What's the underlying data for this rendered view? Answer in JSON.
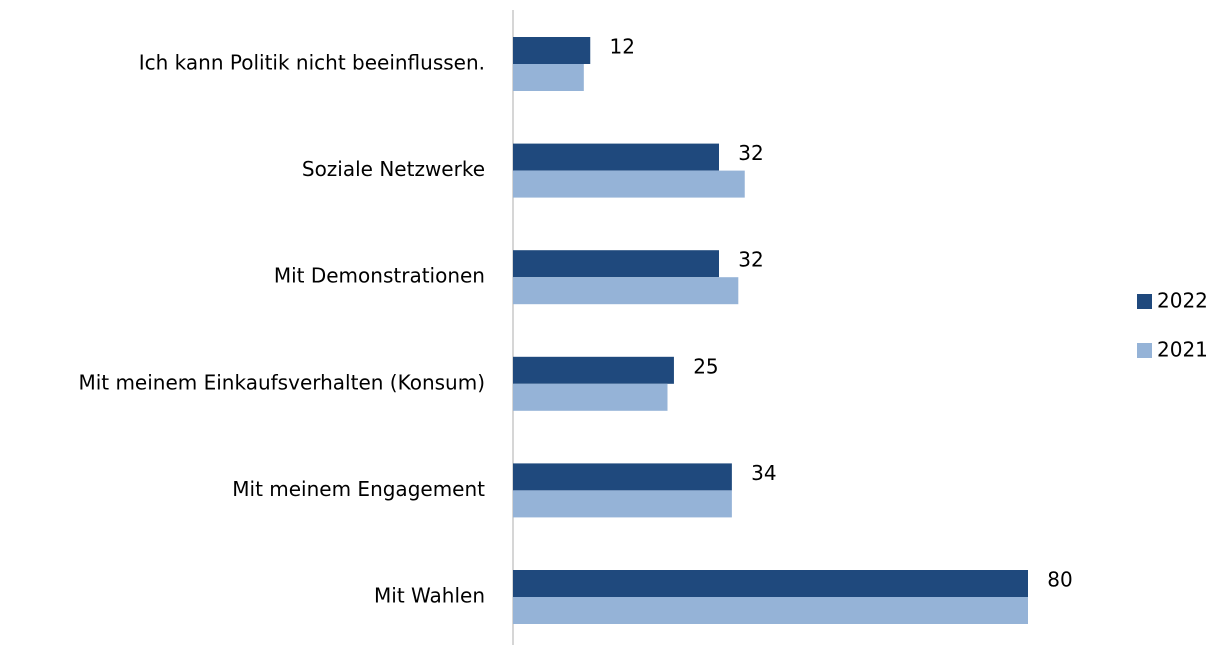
{
  "chart_data": {
    "type": "hbar",
    "categories": [
      "Ich kann Politik nicht beeinflussen.",
      "Soziale Netzwerke",
      "Mit Demonstrationen",
      "Mit meinem Einkaufsverhalten (Konsum)",
      "Mit meinem Engagement",
      "Mit Wahlen"
    ],
    "series": [
      {
        "name": "2022",
        "color": "#1f497d",
        "values": [
          12,
          32,
          32,
          25,
          34,
          80
        ],
        "show_labels": true
      },
      {
        "name": "2021",
        "color": "#95b3d7",
        "values": [
          11,
          36,
          35,
          24,
          34,
          80
        ],
        "show_labels": false
      }
    ],
    "xlim": [
      0,
      80
    ],
    "legend": "right"
  }
}
